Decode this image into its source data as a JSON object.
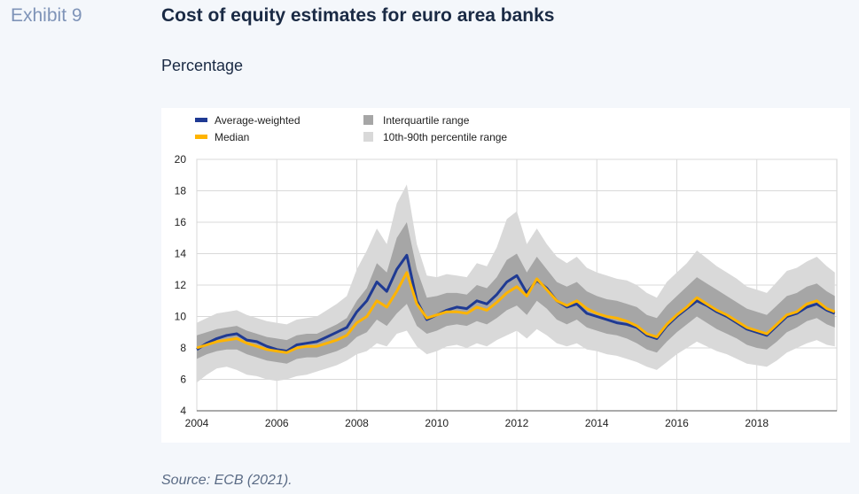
{
  "header": {
    "exhibit_label": "Exhibit 9",
    "title": "Cost of equity estimates for euro area banks",
    "subtitle": "Percentage"
  },
  "footer": {
    "source": "Source: ECB (2021)."
  },
  "colors": {
    "average_weighted": "#1f3a93",
    "median": "#ffb400",
    "interquartile": "#a6a6a6",
    "p10_90": "#d9d9d9"
  },
  "chart_data": {
    "type": "line",
    "title": "",
    "xlabel": "",
    "ylabel": "",
    "xlim": [
      2004,
      2020
    ],
    "ylim": [
      4,
      20
    ],
    "x_ticks": [
      "2004",
      "2006",
      "2008",
      "2010",
      "2012",
      "2014",
      "2016",
      "2018"
    ],
    "y_ticks": [
      "4",
      "6",
      "8",
      "10",
      "12",
      "14",
      "16",
      "18",
      "20"
    ],
    "grid": "vertical and horizontal",
    "legend_position": "top-left",
    "legend": [
      {
        "label": "Average-weighted",
        "kind": "line",
        "color": "#1f3a93"
      },
      {
        "label": "Median",
        "kind": "line",
        "color": "#ffb400"
      },
      {
        "label": "Interquartile range",
        "kind": "band",
        "color": "#a6a6a6"
      },
      {
        "label": "10th-90th percentile range",
        "kind": "band",
        "color": "#d9d9d9"
      }
    ],
    "x": [
      2004.0,
      2004.25,
      2004.5,
      2004.75,
      2005.0,
      2005.25,
      2005.5,
      2005.75,
      2006.0,
      2006.25,
      2006.5,
      2006.75,
      2007.0,
      2007.25,
      2007.5,
      2007.75,
      2008.0,
      2008.25,
      2008.5,
      2008.75,
      2009.0,
      2009.25,
      2009.5,
      2009.75,
      2010.0,
      2010.25,
      2010.5,
      2010.75,
      2011.0,
      2011.25,
      2011.5,
      2011.75,
      2012.0,
      2012.25,
      2012.5,
      2012.75,
      2013.0,
      2013.25,
      2013.5,
      2013.75,
      2014.0,
      2014.25,
      2014.5,
      2014.75,
      2015.0,
      2015.25,
      2015.5,
      2015.75,
      2016.0,
      2016.25,
      2016.5,
      2016.75,
      2017.0,
      2017.25,
      2017.5,
      2017.75,
      2018.0,
      2018.25,
      2018.5,
      2018.75,
      2019.0,
      2019.25,
      2019.5,
      2019.75,
      2019.95
    ],
    "series": [
      {
        "name": "Average-weighted",
        "values": [
          7.9,
          8.3,
          8.6,
          8.8,
          8.9,
          8.5,
          8.4,
          8.1,
          7.9,
          7.8,
          8.2,
          8.3,
          8.4,
          8.7,
          9.0,
          9.3,
          10.3,
          11.0,
          12.2,
          11.6,
          13.0,
          13.9,
          11.0,
          9.8,
          10.1,
          10.4,
          10.6,
          10.5,
          11.0,
          10.8,
          11.4,
          12.2,
          12.6,
          11.5,
          12.3,
          11.8,
          11.0,
          10.6,
          10.8,
          10.2,
          10.0,
          9.8,
          9.6,
          9.5,
          9.3,
          8.8,
          8.6,
          9.4,
          10.0,
          10.5,
          11.0,
          10.7,
          10.3,
          10.0,
          9.6,
          9.2,
          9.0,
          8.8,
          9.4,
          10.0,
          10.2,
          10.6,
          10.8,
          10.4,
          10.2
        ]
      },
      {
        "name": "Median",
        "values": [
          8.0,
          8.2,
          8.4,
          8.5,
          8.6,
          8.3,
          8.1,
          7.9,
          7.8,
          7.7,
          8.0,
          8.1,
          8.1,
          8.3,
          8.5,
          8.8,
          9.6,
          10.0,
          11.0,
          10.6,
          11.6,
          12.8,
          10.8,
          9.9,
          10.1,
          10.3,
          10.3,
          10.2,
          10.6,
          10.4,
          10.9,
          11.5,
          11.9,
          11.3,
          12.4,
          11.7,
          11.0,
          10.7,
          11.0,
          10.5,
          10.2,
          10.0,
          9.9,
          9.7,
          9.4,
          8.9,
          8.7,
          9.5,
          10.1,
          10.6,
          11.2,
          10.8,
          10.4,
          10.1,
          9.7,
          9.3,
          9.1,
          8.9,
          9.5,
          10.1,
          10.3,
          10.8,
          11.0,
          10.5,
          10.3
        ]
      },
      {
        "name": "Interquartile range",
        "low": [
          7.3,
          7.6,
          7.8,
          7.9,
          7.9,
          7.6,
          7.4,
          7.2,
          7.1,
          7.0,
          7.3,
          7.4,
          7.4,
          7.6,
          7.8,
          8.1,
          8.7,
          9.0,
          9.8,
          9.4,
          10.2,
          10.8,
          9.4,
          8.9,
          9.1,
          9.4,
          9.5,
          9.4,
          9.7,
          9.5,
          9.9,
          10.4,
          10.7,
          10.1,
          11.0,
          10.5,
          9.8,
          9.5,
          9.8,
          9.3,
          9.1,
          8.9,
          8.8,
          8.6,
          8.3,
          7.9,
          7.7,
          8.4,
          9.0,
          9.5,
          10.0,
          9.6,
          9.2,
          8.9,
          8.6,
          8.2,
          8.0,
          7.9,
          8.4,
          9.0,
          9.3,
          9.7,
          9.9,
          9.5,
          9.3
        ],
        "high": [
          8.8,
          9.0,
          9.2,
          9.3,
          9.4,
          9.1,
          8.9,
          8.7,
          8.6,
          8.5,
          8.8,
          8.9,
          8.9,
          9.2,
          9.5,
          9.9,
          11.0,
          11.8,
          13.4,
          12.8,
          15.0,
          16.0,
          13.0,
          11.2,
          11.3,
          11.5,
          11.5,
          11.4,
          12.0,
          11.8,
          12.5,
          13.6,
          14.0,
          12.8,
          13.8,
          13.0,
          12.2,
          11.9,
          12.2,
          11.6,
          11.3,
          11.1,
          11.0,
          10.8,
          10.6,
          10.1,
          9.9,
          10.7,
          11.3,
          11.9,
          12.5,
          12.1,
          11.7,
          11.3,
          10.9,
          10.5,
          10.3,
          10.1,
          10.7,
          11.3,
          11.5,
          11.9,
          12.1,
          11.6,
          11.3
        ]
      },
      {
        "name": "10th-90th percentile range",
        "low": [
          5.8,
          6.3,
          6.7,
          6.8,
          6.6,
          6.3,
          6.2,
          6.0,
          5.9,
          6.0,
          6.2,
          6.3,
          6.5,
          6.7,
          6.9,
          7.2,
          7.6,
          7.8,
          8.3,
          8.1,
          8.9,
          9.1,
          8.1,
          7.6,
          7.8,
          8.1,
          8.2,
          8.0,
          8.3,
          8.1,
          8.5,
          8.8,
          9.1,
          8.6,
          9.2,
          8.8,
          8.3,
          8.1,
          8.3,
          7.9,
          7.8,
          7.6,
          7.5,
          7.3,
          7.1,
          6.8,
          6.6,
          7.1,
          7.6,
          8.0,
          8.4,
          8.1,
          7.8,
          7.6,
          7.3,
          7.0,
          6.9,
          6.8,
          7.2,
          7.7,
          8.0,
          8.3,
          8.5,
          8.2,
          8.1
        ],
        "high": [
          9.6,
          9.9,
          10.2,
          10.3,
          10.4,
          10.1,
          9.9,
          9.7,
          9.6,
          9.5,
          9.8,
          9.9,
          10.0,
          10.4,
          10.8,
          11.3,
          13.0,
          14.2,
          15.6,
          14.6,
          17.2,
          18.4,
          14.6,
          12.6,
          12.5,
          12.7,
          12.6,
          12.5,
          13.4,
          13.2,
          14.4,
          16.2,
          16.7,
          14.6,
          15.6,
          14.6,
          13.8,
          13.4,
          13.8,
          13.1,
          12.8,
          12.6,
          12.4,
          12.3,
          12.0,
          11.5,
          11.2,
          12.2,
          12.8,
          13.4,
          14.2,
          13.7,
          13.2,
          12.8,
          12.4,
          11.9,
          11.7,
          11.5,
          12.2,
          12.9,
          13.1,
          13.5,
          13.8,
          13.2,
          12.8
        ]
      }
    ]
  }
}
